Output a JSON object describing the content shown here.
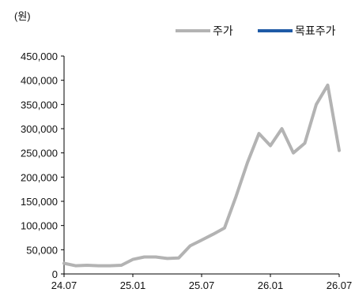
{
  "chart_data": {
    "type": "line",
    "unit_label": "(원)",
    "legend": [
      {
        "name": "주가",
        "color": "#b3b3b3"
      },
      {
        "name": "목표주가",
        "color": "#1f5aa6"
      }
    ],
    "yticks": [
      "0",
      "50,000",
      "100,000",
      "150,000",
      "200,000",
      "250,000",
      "300,000",
      "350,000",
      "400,000",
      "450,000"
    ],
    "ylim": [
      0,
      450000
    ],
    "xticks": [
      "24.07",
      "25.01",
      "25.07",
      "26.01",
      "26.07"
    ],
    "xlim": [
      "2024-07",
      "2026-07"
    ],
    "series": [
      {
        "name": "주가",
        "color": "#b3b3b3",
        "x": [
          "2024-07",
          "2024-08",
          "2024-09",
          "2024-10",
          "2024-11",
          "2024-12",
          "2025-01",
          "2025-02",
          "2025-03",
          "2025-04",
          "2025-05",
          "2025-06",
          "2025-07",
          "2025-08",
          "2025-09",
          "2025-10",
          "2025-11",
          "2025-12",
          "2026-01",
          "2026-02",
          "2026-03",
          "2026-04",
          "2026-05",
          "2026-06",
          "2026-07"
        ],
        "values": [
          22000,
          17000,
          18000,
          17000,
          17000,
          18000,
          30000,
          35000,
          35000,
          32000,
          33000,
          58000,
          70000,
          82000,
          95000,
          160000,
          230000,
          290000,
          265000,
          300000,
          250000,
          270000,
          350000,
          390000,
          255000
        ]
      }
    ]
  }
}
